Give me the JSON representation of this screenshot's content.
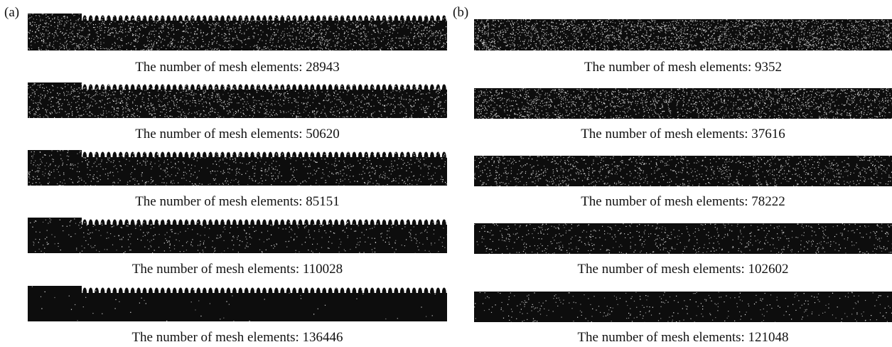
{
  "panels": [
    {
      "label": "(a)",
      "meshes": [
        {
          "caption": "The number of mesh elements: 28943",
          "elements": 28943
        },
        {
          "caption": "The number of mesh elements: 50620",
          "elements": 50620
        },
        {
          "caption": "The number of mesh elements: 85151",
          "elements": 85151
        },
        {
          "caption": "The number of mesh elements: 110028",
          "elements": 110028
        },
        {
          "caption": "The number of mesh elements: 136446",
          "elements": 136446
        }
      ]
    },
    {
      "label": "(b)",
      "meshes": [
        {
          "caption": "The number of mesh elements: 9352",
          "elements": 9352
        },
        {
          "caption": "The number of mesh elements: 37616",
          "elements": 37616
        },
        {
          "caption": "The number of mesh elements: 78222",
          "elements": 78222
        },
        {
          "caption": "The number of mesh elements: 102602",
          "elements": 102602
        },
        {
          "caption": "The number of mesh elements: 121048",
          "elements": 121048
        }
      ]
    }
  ]
}
